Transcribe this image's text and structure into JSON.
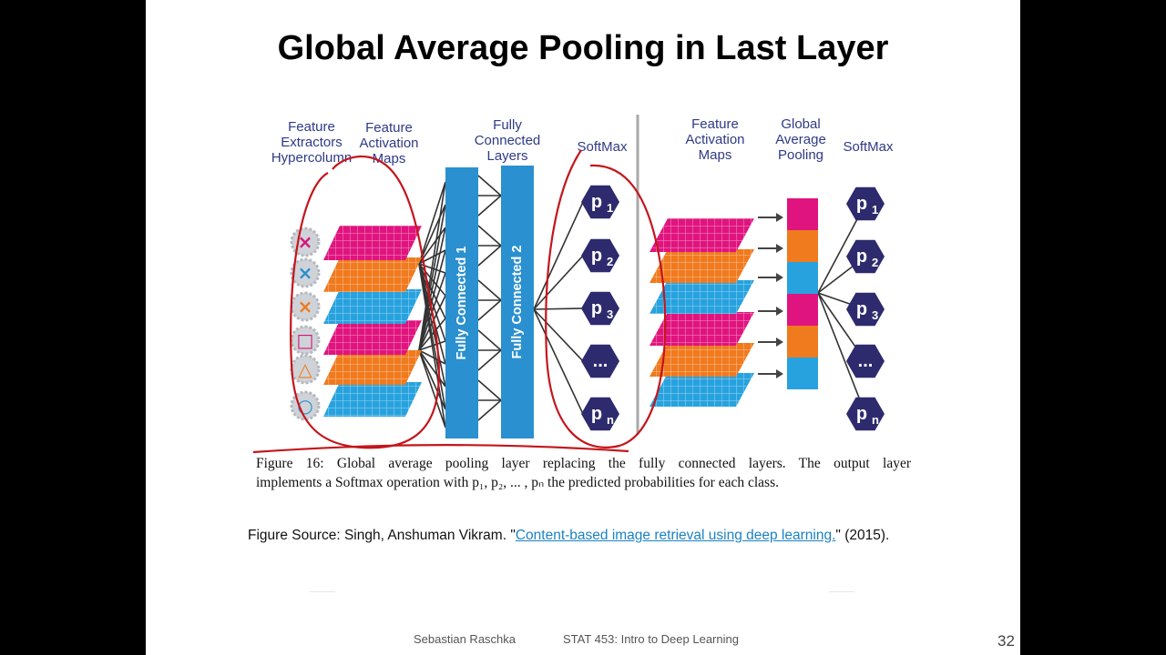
{
  "slide": {
    "title": "Global Average Pooling in Last Layer",
    "page_number": "32",
    "footer_author": "Sebastian Raschka",
    "footer_course": "STAT 453: Intro to Deep Learning"
  },
  "figure": {
    "labels": {
      "feature_extractors": [
        "Feature",
        "Extractors",
        "Hypercolumn"
      ],
      "feature_maps_left": [
        "Feature",
        "Activation",
        "Maps"
      ],
      "fully_connected_layers": [
        "Fully",
        "Connected",
        "Layers"
      ],
      "softmax_left": "SoftMax",
      "feature_maps_right": [
        "Feature",
        "Activation",
        "Maps"
      ],
      "global_average_pooling": [
        "Global",
        "Average",
        "Pooling"
      ],
      "softmax_right": "SoftMax"
    },
    "fc1_label": "Fully Connected 1",
    "fc2_label": "Fully Connected 2",
    "output_nodes": [
      "p",
      "p",
      "p",
      "...",
      "p"
    ],
    "output_subscripts": [
      "1",
      "2",
      "3",
      "",
      "n"
    ],
    "input_symbols": [
      "×",
      "×",
      "×",
      "□",
      "△",
      "○"
    ],
    "colors": {
      "magenta": "#e0147e",
      "orange": "#f07a1e",
      "blue": "#27a2de",
      "fc": "#2a90cf",
      "node": "#2d2a6e",
      "annotation": "#c4151c"
    }
  },
  "caption": {
    "line1": "Figure 16: Global average pooling layer replacing the fully connected layers. The output layer",
    "line2": "implements a Softmax operation with p₁, p₂,  ... , pₙ the predicted probabilities for each class."
  },
  "source": {
    "prefix": "Figure Source: Singh, Anshuman Vikram. \"",
    "link": "Content-based image retrieval using deep learning.",
    "suffix": "\" (2015)."
  }
}
